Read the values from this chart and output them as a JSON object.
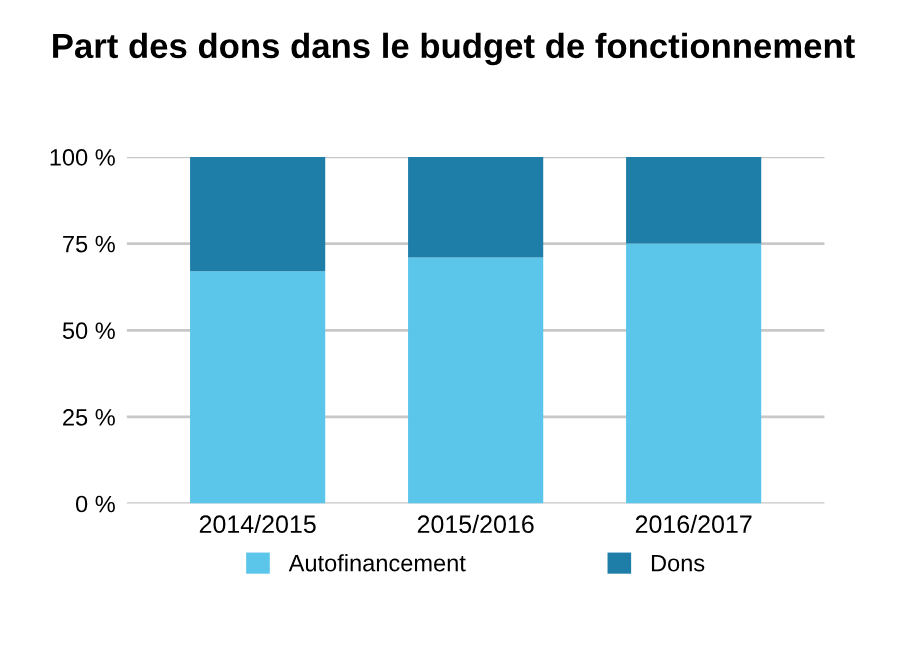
{
  "chart_data": {
    "type": "bar",
    "stacked": true,
    "title": "Part des dons dans le budget de fonctionnement",
    "categories": [
      "2014/2015",
      "2015/2016",
      "2016/2017"
    ],
    "series": [
      {
        "name": "Autofinancement",
        "color": "#5bc5ea",
        "values": [
          67,
          71,
          75
        ]
      },
      {
        "name": "Dons",
        "color": "#1f7ea8",
        "values": [
          33,
          29,
          25
        ]
      }
    ],
    "ylim": [
      0,
      100
    ],
    "yticks": [
      {
        "value": 0,
        "label": "0 %"
      },
      {
        "value": 25,
        "label": "25 %"
      },
      {
        "value": 50,
        "label": "50 %"
      },
      {
        "value": 75,
        "label": "75 %"
      },
      {
        "value": 100,
        "label": "100 %"
      }
    ],
    "grid": "y",
    "legend": "bottom"
  }
}
